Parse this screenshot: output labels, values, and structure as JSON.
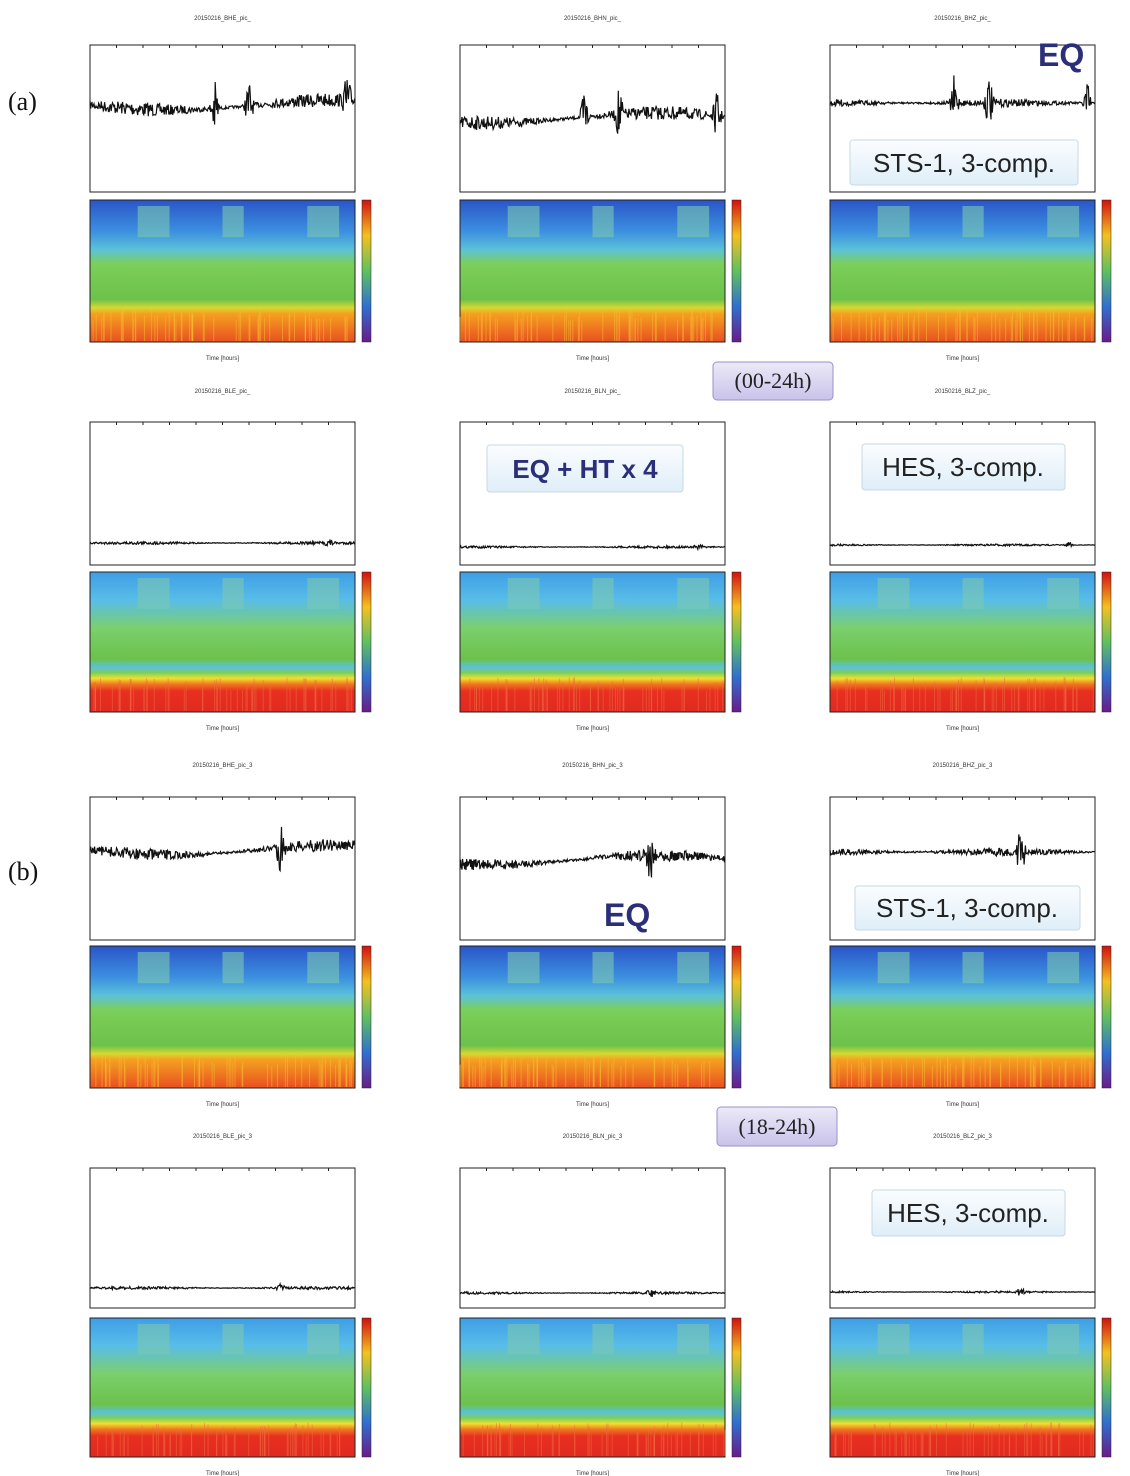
{
  "labels": {
    "a": "(a)",
    "b": "(b)"
  },
  "ranges": [
    "(00-24h)",
    "(18-24h)"
  ],
  "annotations": {
    "eq_top": "EQ",
    "sts_top": "STS-1, 3-comp.",
    "eqht": "EQ + HT x 4",
    "hes_top": "HES, 3-comp.",
    "eq_bottom": "EQ",
    "sts_bottom": "STS-1, 3-comp.",
    "hes_bottom": "HES, 3-comp."
  },
  "panels": [
    {
      "title": "20150216_BHE_pic_",
      "xlabel": "Time [hours]"
    },
    {
      "title": "20150216_BHN_pic_",
      "xlabel": "Time [hours]"
    },
    {
      "title": "20150216_BHZ_pic_",
      "xlabel": "Time [hours]"
    },
    {
      "title": "20150216_BLE_pic_",
      "xlabel": "Time [hours]"
    },
    {
      "title": "20150216_BLN_pic_",
      "xlabel": "Time [hours]"
    },
    {
      "title": "20150216_BLZ_pic_",
      "xlabel": "Time [hours]"
    },
    {
      "title": "20150216_BHE_pic_3",
      "xlabel": "Time [hours]"
    },
    {
      "title": "20150216_BHN_pic_3",
      "xlabel": "Time [hours]"
    },
    {
      "title": "20150216_BHZ_pic_3",
      "xlabel": "Time [hours]"
    },
    {
      "title": "20150216_BLE_pic_3",
      "xlabel": "Time [hours]"
    },
    {
      "title": "20150216_BLN_pic_3",
      "xlabel": "Time [hours]"
    },
    {
      "title": "20150216_BLZ_pic_3",
      "xlabel": "Time [hours]"
    }
  ]
}
